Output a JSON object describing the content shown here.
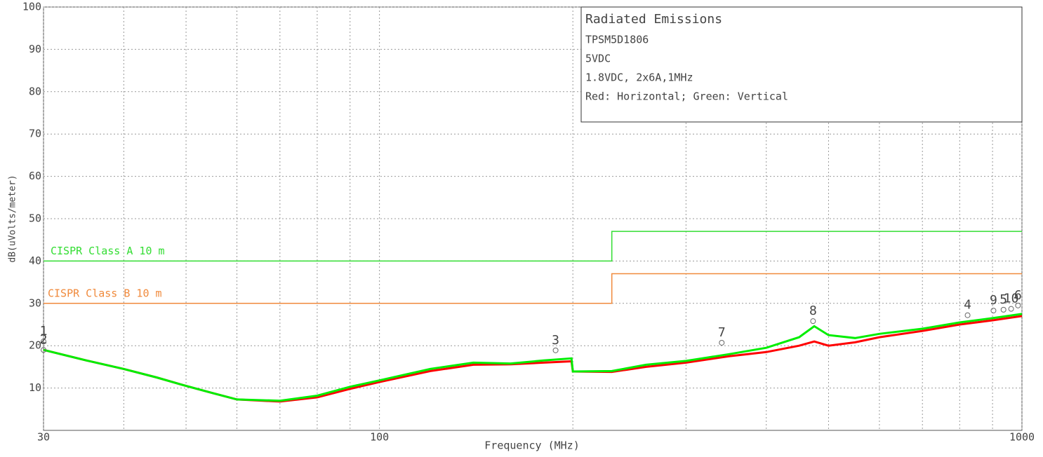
{
  "chart_data": {
    "type": "line",
    "xlabel": "Frequency (MHz)",
    "ylabel": "dB(uVolts/meter)",
    "xscale": "log",
    "xlim": [
      30,
      1000
    ],
    "xticks": [
      30,
      100,
      1000
    ],
    "xminorticks": [
      40,
      50,
      60,
      70,
      80,
      90,
      200,
      300,
      400,
      500,
      600,
      700,
      800,
      900
    ],
    "ylim": [
      0,
      100
    ],
    "yticks": [
      10,
      20,
      30,
      40,
      50,
      60,
      70,
      80,
      90,
      100
    ],
    "grid": true,
    "info_box": [
      "Radiated Emissions",
      "TPSM5D1806",
      "5VDC",
      "1.8VDC, 2x6A,1MHz",
      "Red: Horizontal; Green: Vertical"
    ],
    "series": [
      {
        "name": "Horizontal",
        "color": "#ff0000",
        "x": [
          30,
          35,
          40,
          45,
          50,
          55,
          60,
          70,
          80,
          90,
          100,
          120,
          140,
          160,
          180,
          199,
          200,
          230,
          260,
          300,
          350,
          400,
          450,
          475,
          500,
          550,
          600,
          700,
          800,
          900,
          1000
        ],
        "values": [
          19,
          16.5,
          14.5,
          12.5,
          10.5,
          8.8,
          7.3,
          6.8,
          7.8,
          9.8,
          11.4,
          14,
          15.5,
          15.6,
          16,
          16.3,
          13.9,
          13.8,
          15,
          16,
          17.5,
          18.5,
          20,
          21,
          20,
          20.8,
          22,
          23.5,
          25,
          26,
          27
        ]
      },
      {
        "name": "Vertical",
        "color": "#00ee00",
        "x": [
          30,
          35,
          40,
          45,
          50,
          55,
          60,
          70,
          80,
          90,
          100,
          120,
          140,
          160,
          180,
          199,
          200,
          230,
          260,
          300,
          350,
          400,
          450,
          475,
          500,
          550,
          600,
          700,
          800,
          900,
          1000
        ],
        "values": [
          19,
          16.5,
          14.5,
          12.5,
          10.5,
          8.8,
          7.3,
          7,
          8.2,
          10.3,
          11.8,
          14.5,
          16,
          15.8,
          16.5,
          17,
          13.9,
          14,
          15.5,
          16.4,
          18,
          19.5,
          22,
          24.6,
          22.5,
          21.8,
          22.8,
          24,
          25.5,
          26.5,
          27.5
        ]
      }
    ],
    "limits": [
      {
        "name": "CISPR Class A 10 m",
        "color": "#33dd33",
        "x": [
          30,
          230,
          230,
          1000
        ],
        "values": [
          40,
          40,
          47,
          47
        ]
      },
      {
        "name": "CISPR Class B 10 m",
        "color": "#f08a3c",
        "x": [
          30,
          230,
          230,
          1000
        ],
        "values": [
          30,
          30,
          37,
          37
        ]
      }
    ],
    "markers": [
      {
        "label": "1",
        "x": 30,
        "y": 21
      },
      {
        "label": "2",
        "x": 30,
        "y": 19
      },
      {
        "label": "3",
        "x": 188,
        "y": 18.9
      },
      {
        "label": "7",
        "x": 341,
        "y": 20.7
      },
      {
        "label": "8",
        "x": 473,
        "y": 25.8
      },
      {
        "label": "4",
        "x": 823,
        "y": 27.2
      },
      {
        "label": "9",
        "x": 903,
        "y": 28.3
      },
      {
        "label": "5",
        "x": 936,
        "y": 28.5
      },
      {
        "label": "10",
        "x": 962,
        "y": 28.7
      },
      {
        "label": "6",
        "x": 986,
        "y": 29.5
      }
    ]
  }
}
